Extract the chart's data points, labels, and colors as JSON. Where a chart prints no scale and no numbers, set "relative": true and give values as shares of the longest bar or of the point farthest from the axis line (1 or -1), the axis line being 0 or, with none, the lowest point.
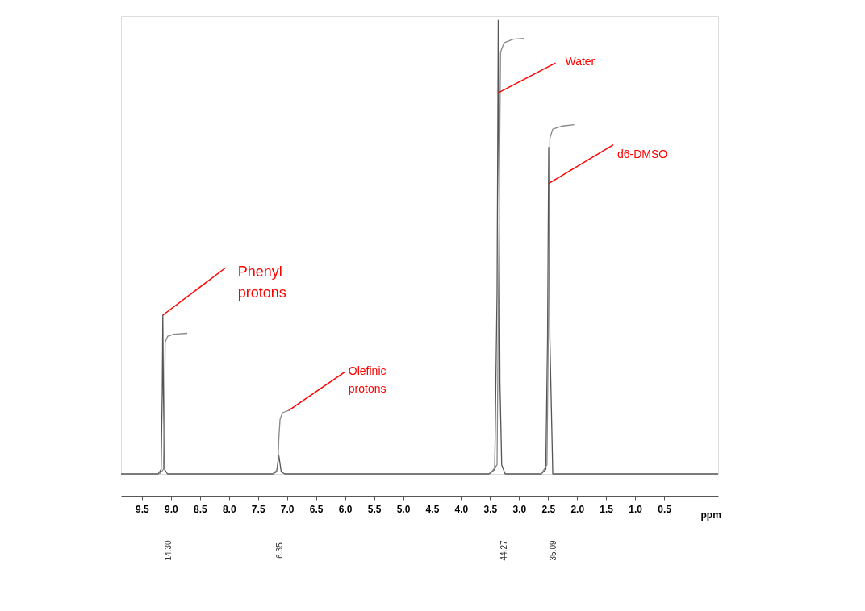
{
  "chart_data": {
    "type": "line",
    "relative": true,
    "xlabel": "ppm",
    "xlim": [
      9.86,
      -0.43
    ],
    "xticks": [
      9.5,
      {
        "value": 9,
        "label": "9.0"
      },
      8.5,
      {
        "value": 8,
        "label": "8.0"
      },
      7.5,
      {
        "value": 7,
        "label": "7.0"
      },
      6.5,
      {
        "value": 6,
        "label": "6.0"
      },
      5.5,
      {
        "value": 5,
        "label": "5.0"
      },
      4.5,
      {
        "value": 4,
        "label": "4.0"
      },
      3.5,
      {
        "value": 3,
        "label": "3.0"
      },
      2.5,
      {
        "value": 2,
        "label": "2.0"
      },
      1.5,
      {
        "value": 1,
        "label": "1.0"
      },
      0.5
    ],
    "series": [
      {
        "color": "#555555",
        "x": [
          9.86,
          9.22,
          9.17,
          9.15,
          9.14,
          9.13,
          9.11,
          9.06,
          7.24,
          7.18,
          7.14,
          7.1,
          7.04,
          3.52,
          3.42,
          3.38,
          3.36,
          3.33,
          3.3,
          3.24,
          2.62,
          2.54,
          2.51,
          2.49,
          2.47,
          2.42,
          -0.43
        ],
        "values": [
          0,
          0,
          0.01,
          0.18,
          0.35,
          0.18,
          0.01,
          0,
          0,
          0.005,
          0.04,
          0.005,
          0,
          0,
          0.01,
          0.4,
          1,
          0.2,
          0.02,
          0,
          0,
          0.01,
          0.3,
          0.72,
          0.3,
          0,
          0
        ]
      },
      {
        "color": "#888888",
        "x": [
          9.2,
          9.13,
          9.11,
          9.1,
          9.06,
          8.95,
          8.72
        ],
        "values": [
          0,
          0.01,
          0.15,
          0.29,
          0.303,
          0.308,
          0.31
        ]
      },
      {
        "color": "#888888",
        "x": [
          7.25,
          7.16,
          7.14,
          7.12,
          7.08,
          6.97
        ],
        "values": [
          0,
          0.01,
          0.08,
          0.12,
          0.135,
          0.14
        ]
      },
      {
        "color": "#888888",
        "x": [
          3.5,
          3.38,
          3.35,
          3.32,
          3.26,
          3.1,
          2.91
        ],
        "values": [
          0,
          0.02,
          0.5,
          0.93,
          0.95,
          0.958,
          0.96
        ]
      },
      {
        "color": "#888888",
        "x": [
          2.62,
          2.52,
          2.49,
          2.47,
          2.42,
          2.25,
          2.05
        ],
        "values": [
          0,
          0.02,
          0.4,
          0.74,
          0.76,
          0.767,
          0.77
        ]
      }
    ],
    "annotations": [
      {
        "text": "Phenyl\nprotons",
        "x": 9.14,
        "y": 0.35
      },
      {
        "text": "Olefinic\nprotons",
        "x": 6.97,
        "y": 0.14
      },
      {
        "text": "Water",
        "x": 3.36,
        "y": 0.84
      },
      {
        "text": "d6-DMSO",
        "x": 2.49,
        "y": 0.64
      },
      "14.30",
      "6.35",
      "44.27",
      "35.09"
    ],
    "marker": "none",
    "line_style": "solid",
    "grid": false
  }
}
